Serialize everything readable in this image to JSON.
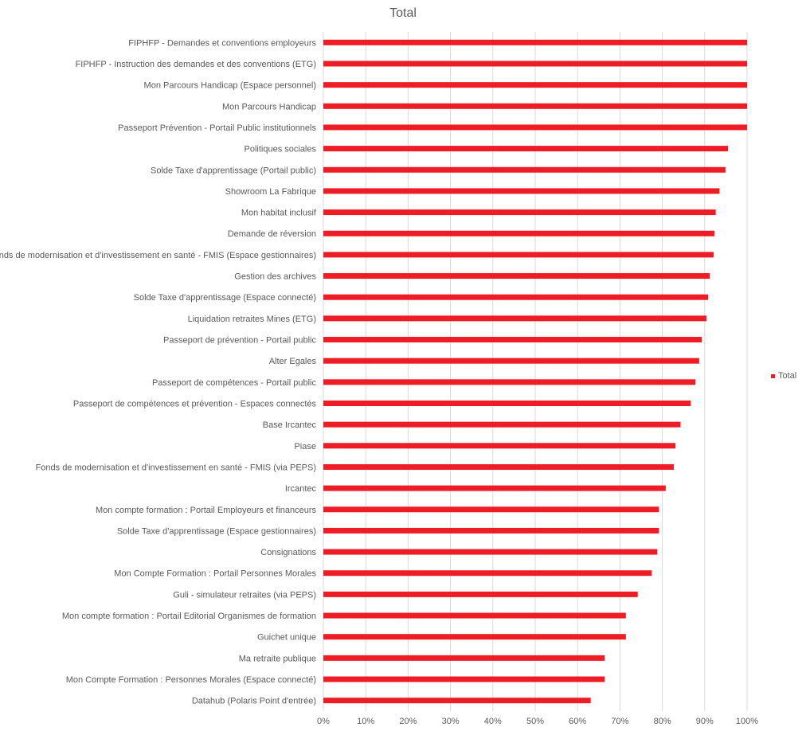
{
  "chart_data": {
    "type": "bar",
    "orientation": "horizontal",
    "title": "Total",
    "xlabel": "",
    "ylabel": "",
    "xlim": [
      0,
      100
    ],
    "x_ticks": [
      "0%",
      "10%",
      "20%",
      "30%",
      "40%",
      "50%",
      "60%",
      "70%",
      "80%",
      "90%",
      "100%"
    ],
    "grid": true,
    "legend": {
      "position": "right",
      "entries": [
        "Total"
      ]
    },
    "bar_color": "#ee1c25",
    "categories": [
      "FIPHFP - Demandes et conventions employeurs",
      "FIPHFP - Instruction des demandes et des conventions (ETG)",
      "Mon Parcours Handicap (Espace personnel)",
      "Mon Parcours Handicap",
      "Passeport Prévention - Portail Public institutionnels",
      "Politiques sociales",
      "Solde Taxe d'apprentissage (Portail public)",
      "Showroom La Fabrique",
      "Mon habitat inclusif",
      "Demande de réversion",
      "Fonds de modernisation et d'investissement en santé - FMIS (Espace gestionnaires)",
      "Gestion des archives",
      "Solde Taxe d'apprentissage (Espace connecté)",
      "Liquidation retraites Mines (ETG)",
      "Passeport de prévention - Portail public",
      "Alter Egales",
      "Passeport de compétences - Portail public",
      "Passeport de compétences et prévention - Espaces connectés",
      "Base Ircantec",
      "Piase",
      "Fonds de modernisation et d'investissement en santé - FMIS (via PEPS)",
      "Ircantec",
      "Mon compte formation  : Portail Employeurs et financeurs",
      "Solde Taxe d'apprentissage (Espace gestionnaires)",
      "Consignations",
      "Mon Compte Formation : Portail Personnes Morales",
      "Guli - simulateur retraites (via PEPS)",
      "Mon compte formation  : Portail Editorial Organismes de formation",
      "Guichet unique",
      "Ma retraite publique",
      "Mon Compte Formation : Personnes Morales (Espace connecté)",
      "Datahub (Polaris Point d'entrée)"
    ],
    "series": [
      {
        "name": "Total",
        "values": [
          100,
          100,
          100,
          100,
          100,
          95.5,
          94.9,
          93.5,
          92.6,
          92.3,
          92.1,
          91.2,
          90.8,
          90.4,
          89.3,
          88.7,
          87.8,
          86.7,
          84.3,
          83.1,
          82.7,
          80.8,
          79.2,
          79.2,
          78.8,
          77.5,
          74.2,
          71.4,
          71.4,
          66.4,
          66.4,
          63.1
        ]
      }
    ]
  }
}
